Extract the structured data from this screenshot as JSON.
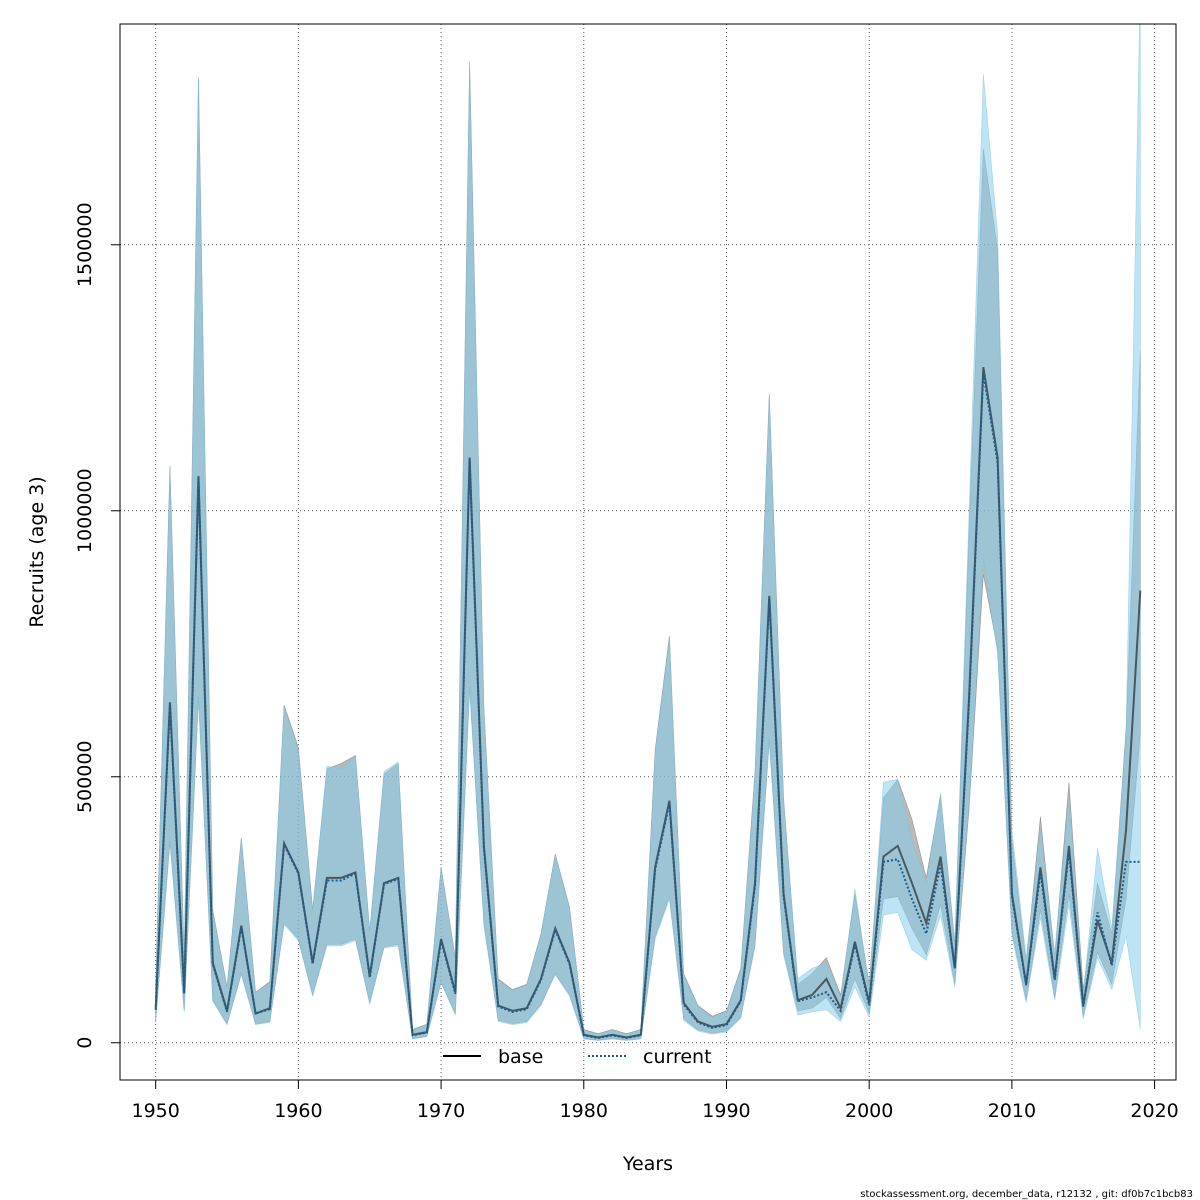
{
  "chart_data": {
    "type": "line",
    "xlabel": "Years",
    "ylabel": "Recruits (age 3)",
    "xlim": [
      1947.5,
      2021.5
    ],
    "ylim": [
      -70000,
      1915000
    ],
    "x_ticks": [
      1950,
      1960,
      1970,
      1980,
      1990,
      2000,
      2010,
      2020
    ],
    "y_ticks": [
      0,
      500000,
      1000000,
      1500000
    ],
    "x_tick_labels": [
      "1950",
      "1960",
      "1970",
      "1980",
      "1990",
      "2000",
      "2010",
      "2020"
    ],
    "y_tick_labels": [
      "0",
      "500000",
      "1000000",
      "1500000"
    ],
    "grid": true,
    "legend_position": "bottom-center",
    "footer": "stockassessment.org, december_data, r12132 , git: df0b7c1bcb83",
    "colors": {
      "base": "#000000",
      "current": "#1b5e8c",
      "base_band": "#808080",
      "current_band": "#87ceeb"
    },
    "x": [
      1950,
      1951,
      1952,
      1953,
      1954,
      1955,
      1956,
      1957,
      1958,
      1959,
      1960,
      1961,
      1962,
      1963,
      1964,
      1965,
      1966,
      1967,
      1968,
      1969,
      1970,
      1971,
      1972,
      1973,
      1974,
      1975,
      1976,
      1977,
      1978,
      1979,
      1980,
      1981,
      1982,
      1983,
      1984,
      1985,
      1986,
      1987,
      1988,
      1989,
      1990,
      1991,
      1992,
      1993,
      1994,
      1995,
      1996,
      1997,
      1998,
      1999,
      2000,
      2001,
      2002,
      2003,
      2004,
      2005,
      2006,
      2007,
      2008,
      2009,
      2010,
      2011,
      2012,
      2013,
      2014,
      2015,
      2016,
      2017,
      2018,
      2019
    ],
    "series": [
      {
        "name": "base",
        "style": "solid",
        "values": [
          65000,
          640000,
          95000,
          1065000,
          150000,
          60000,
          220000,
          55000,
          65000,
          375000,
          320000,
          150000,
          310000,
          310000,
          320000,
          125000,
          300000,
          310000,
          15000,
          20000,
          195000,
          95000,
          1100000,
          370000,
          70000,
          60000,
          65000,
          120000,
          215000,
          150000,
          15000,
          10000,
          15000,
          10000,
          15000,
          330000,
          455000,
          75000,
          40000,
          30000,
          35000,
          80000,
          300000,
          840000,
          280000,
          80000,
          90000,
          120000,
          65000,
          190000,
          75000,
          350000,
          370000,
          300000,
          225000,
          350000,
          140000,
          650000,
          1270000,
          1100000,
          280000,
          110000,
          330000,
          120000,
          370000,
          70000,
          230000,
          150000,
          400000,
          850000
        ],
        "lower": [
          40000,
          380000,
          60000,
          650000,
          80000,
          35000,
          130000,
          35000,
          40000,
          225000,
          195000,
          90000,
          185000,
          185000,
          195000,
          75000,
          180000,
          185000,
          8000,
          12000,
          115000,
          55000,
          670000,
          225000,
          42000,
          36000,
          40000,
          72000,
          130000,
          90000,
          8000,
          5000,
          8000,
          5000,
          8000,
          200000,
          275000,
          45000,
          24000,
          18000,
          22000,
          48000,
          185000,
          570000,
          170000,
          60000,
          65000,
          85000,
          45000,
          120000,
          55000,
          270000,
          275000,
          215000,
          165000,
          260000,
          110000,
          440000,
          880000,
          740000,
          210000,
          80000,
          250000,
          85000,
          280000,
          50000,
          170000,
          110000,
          270000,
          580000
        ],
        "upper": [
          110000,
          1085000,
          160000,
          1815000,
          250000,
          105000,
          385000,
          95000,
          115000,
          635000,
          555000,
          250000,
          515000,
          525000,
          540000,
          210000,
          505000,
          525000,
          25000,
          35000,
          330000,
          160000,
          1845000,
          630000,
          120000,
          100000,
          110000,
          205000,
          355000,
          255000,
          25000,
          17000,
          25000,
          17000,
          25000,
          550000,
          765000,
          130000,
          70000,
          50000,
          60000,
          140000,
          510000,
          1220000,
          460000,
          110000,
          130000,
          160000,
          90000,
          280000,
          110000,
          460000,
          495000,
          420000,
          310000,
          465000,
          185000,
          960000,
          1680000,
          1490000,
          380000,
          150000,
          425000,
          160000,
          490000,
          100000,
          300000,
          205000,
          590000,
          1300000
        ]
      },
      {
        "name": "current",
        "style": "dotted",
        "values": [
          62000,
          635000,
          92000,
          1060000,
          148000,
          58000,
          218000,
          55000,
          63000,
          372000,
          318000,
          148000,
          305000,
          305000,
          318000,
          122000,
          298000,
          308000,
          14000,
          19000,
          192000,
          92000,
          1095000,
          365000,
          68000,
          58000,
          63000,
          118000,
          212000,
          148000,
          14000,
          9000,
          14000,
          9000,
          14000,
          325000,
          450000,
          72000,
          38000,
          28000,
          33000,
          78000,
          295000,
          835000,
          275000,
          78000,
          85000,
          95000,
          60000,
          185000,
          70000,
          340000,
          345000,
          270000,
          205000,
          335000,
          140000,
          640000,
          1260000,
          1090000,
          275000,
          108000,
          320000,
          118000,
          360000,
          68000,
          245000,
          145000,
          340000,
          340000
        ],
        "lower": [
          38000,
          375000,
          58000,
          645000,
          78000,
          34000,
          128000,
          34000,
          38000,
          222000,
          192000,
          88000,
          182000,
          182000,
          192000,
          72000,
          178000,
          182000,
          7000,
          11000,
          112000,
          52000,
          665000,
          220000,
          40000,
          34000,
          38000,
          70000,
          128000,
          88000,
          7000,
          4000,
          7000,
          4000,
          7000,
          195000,
          270000,
          42000,
          22000,
          16000,
          20000,
          46000,
          180000,
          565000,
          165000,
          52000,
          58000,
          62000,
          40000,
          105000,
          48000,
          240000,
          245000,
          175000,
          155000,
          240000,
          105000,
          450000,
          910000,
          730000,
          200000,
          75000,
          235000,
          80000,
          260000,
          45000,
          160000,
          100000,
          200000,
          25000
        ],
        "upper": [
          108000,
          1080000,
          158000,
          1810000,
          248000,
          103000,
          383000,
          93000,
          113000,
          632000,
          552000,
          248000,
          520000,
          515000,
          538000,
          208000,
          510000,
          528000,
          24000,
          34000,
          328000,
          158000,
          1840000,
          628000,
          118000,
          98000,
          108000,
          203000,
          353000,
          253000,
          24000,
          16000,
          24000,
          16000,
          24000,
          545000,
          760000,
          128000,
          68000,
          48000,
          58000,
          138000,
          505000,
          1215000,
          455000,
          120000,
          140000,
          150000,
          85000,
          290000,
          105000,
          490000,
          495000,
          380000,
          300000,
          470000,
          190000,
          1000000,
          1820000,
          1520000,
          400000,
          160000,
          400000,
          170000,
          460000,
          90000,
          365000,
          215000,
          580000,
          2000000
        ]
      }
    ]
  }
}
